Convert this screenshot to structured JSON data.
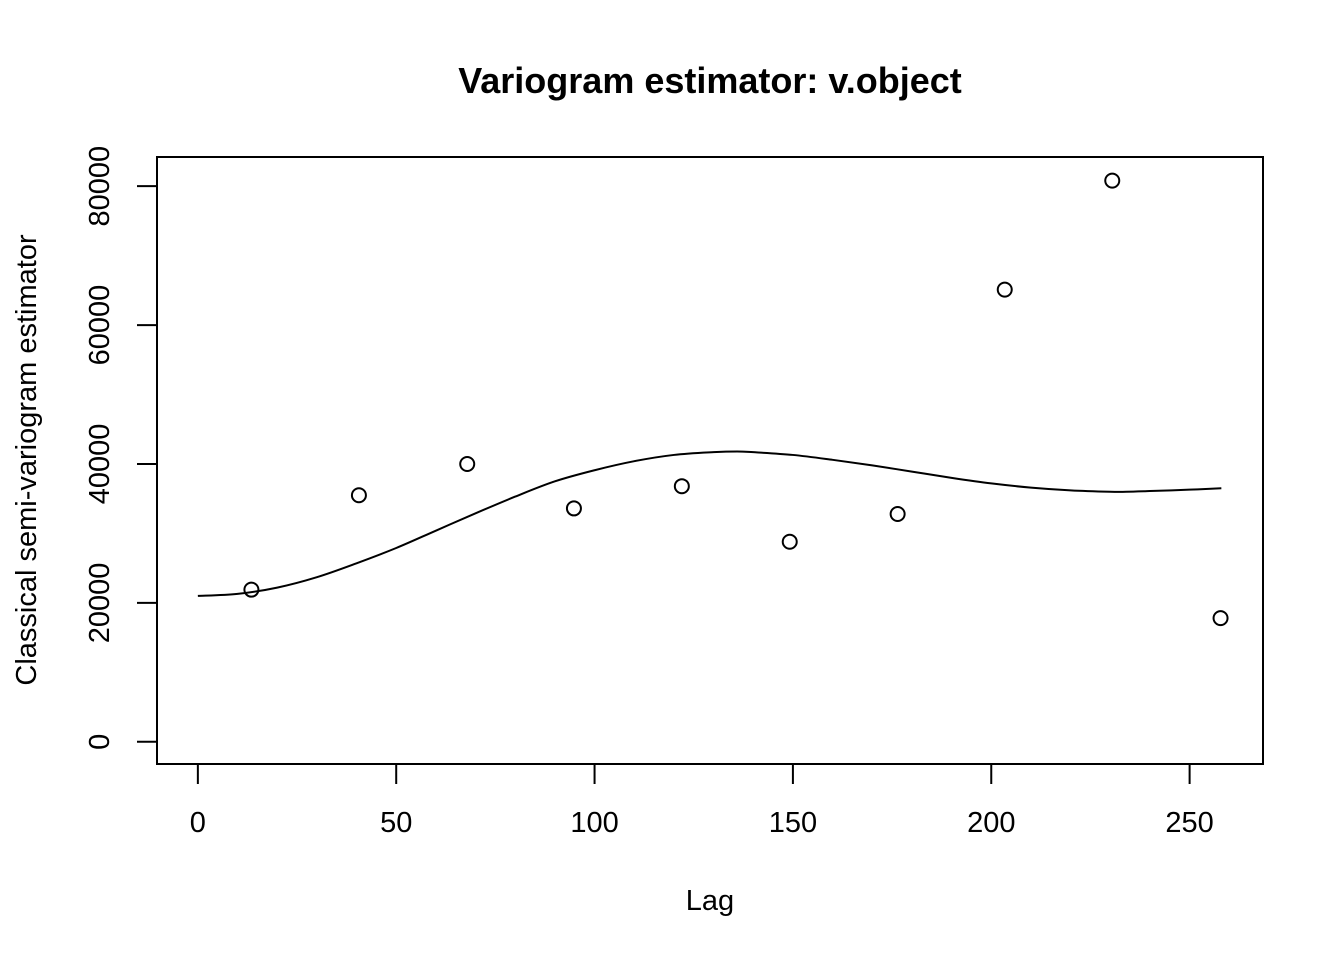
{
  "chart_data": {
    "type": "scatter",
    "title": "Variogram estimator: v.object",
    "xlabel": "Lag",
    "ylabel": "Classical semi-variogram estimator",
    "xlim": [
      -10.3,
      268.5
    ],
    "ylim": [
      -3200,
      84200
    ],
    "xticks": [
      0,
      50,
      100,
      150,
      200,
      250
    ],
    "yticks": [
      0,
      20000,
      40000,
      60000,
      80000
    ],
    "xtick_labels": [
      "0",
      "50",
      "100",
      "150",
      "200",
      "250"
    ],
    "ytick_labels": [
      "0",
      "20000",
      "40000",
      "60000",
      "80000"
    ],
    "grid": false,
    "legend": "none",
    "points": {
      "x": [
        13.5,
        40.6,
        67.9,
        94.8,
        122.0,
        149.2,
        176.4,
        203.4,
        230.5,
        257.8
      ],
      "y": [
        21900,
        35500,
        40000,
        33600,
        36800,
        28800,
        32800,
        65100,
        80800,
        17800
      ]
    },
    "fitted_curve": {
      "x": [
        0,
        10,
        20,
        30,
        40,
        50,
        60,
        70,
        80,
        90,
        100,
        110,
        120,
        130,
        136,
        140,
        150,
        160,
        170,
        180,
        190,
        200,
        210,
        220,
        230,
        234,
        240,
        250,
        258
      ],
      "y": [
        21000,
        21300,
        22200,
        23700,
        25700,
        27900,
        30400,
        32900,
        35300,
        37500,
        39100,
        40400,
        41300,
        41700,
        41800,
        41700,
        41300,
        40600,
        39800,
        38900,
        38000,
        37200,
        36600,
        36200,
        36000,
        36000,
        36100,
        36300,
        36500
      ]
    }
  }
}
